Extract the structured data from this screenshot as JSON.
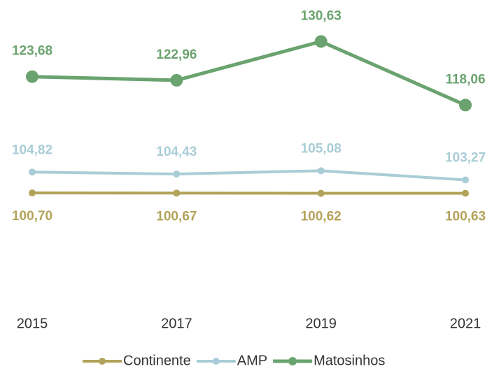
{
  "chart_data": {
    "type": "line",
    "categories": [
      "2015",
      "2017",
      "2019",
      "2021"
    ],
    "ylim": [
      80,
      138
    ],
    "series": [
      {
        "name": "Continente",
        "color": "#b3a35a",
        "values": [
          100.7,
          100.67,
          100.62,
          100.63
        ],
        "value_labels": [
          "100,70",
          "100,67",
          "100,62",
          "100,63"
        ]
      },
      {
        "name": "AMP",
        "color": "#a9cdd6",
        "values": [
          104.82,
          104.43,
          105.08,
          103.27
        ],
        "value_labels": [
          "104,82",
          "104,43",
          "105,08",
          "103,27"
        ]
      },
      {
        "name": "Matosinhos",
        "color": "#6aa36f",
        "values": [
          123.68,
          122.96,
          130.63,
          118.06
        ],
        "value_labels": [
          "123,68",
          "122,96",
          "130,63",
          "118,06"
        ]
      }
    ],
    "legend": "bottom"
  }
}
